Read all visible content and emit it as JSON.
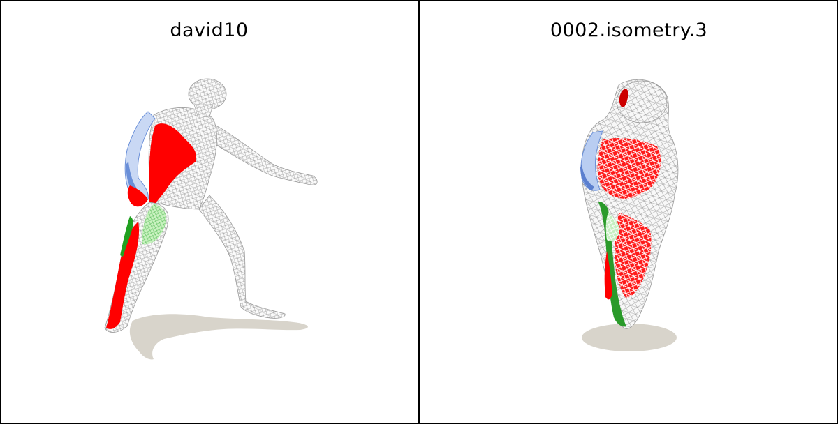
{
  "panels": [
    {
      "title": "david10"
    },
    {
      "title": "0002.isometry.3"
    }
  ],
  "colors": {
    "shadow": "#d8d4cb",
    "mesh": "#b8b8b8",
    "highlight_red": "#ff0000",
    "highlight_green": "#7ddc7d",
    "highlight_blue": "#6a8fd8"
  }
}
